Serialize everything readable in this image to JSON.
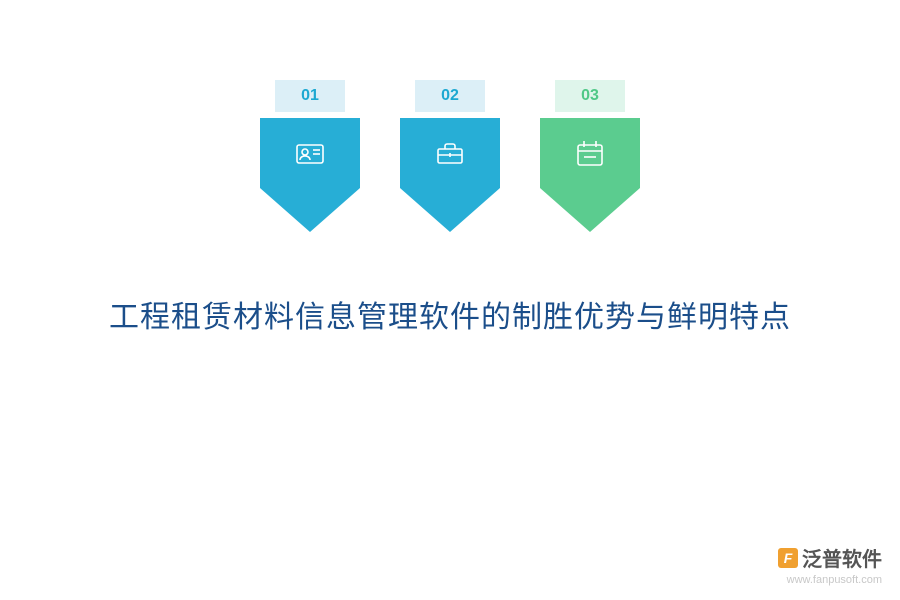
{
  "infographic": {
    "type": "infographic",
    "background_color": "#ffffff",
    "arrows": [
      {
        "number": "01",
        "tab_bg": "#dceff7",
        "tab_text_color": "#1ca8d1",
        "body_color": "#27aed6",
        "tip_color": "#27aed6",
        "icon": "id-card"
      },
      {
        "number": "02",
        "tab_bg": "#dceff7",
        "tab_text_color": "#1ca8d1",
        "body_color": "#27aed6",
        "tip_color": "#27aed6",
        "icon": "toolbox"
      },
      {
        "number": "03",
        "tab_bg": "#dff5eb",
        "tab_text_color": "#4fc887",
        "body_color": "#5bcc8f",
        "tip_color": "#5bcc8f",
        "icon": "calendar"
      }
    ],
    "arrow_width": 100,
    "arrow_body_height": 70,
    "arrow_tip_height": 44,
    "arrow_gap": 40,
    "tab_width": 70,
    "tab_height": 32,
    "icon_stroke_color": "#ffffff",
    "icon_stroke_width": 1.6,
    "title": {
      "text": "工程租赁材料信息管理软件的制胜优势与鲜明特点",
      "color": "#1b4e8a",
      "fontsize": 30,
      "margin_top": 60
    }
  },
  "watermark": {
    "brand_text": "泛普软件",
    "brand_color": "#555555",
    "logo_bg": "#f0a030",
    "logo_text": "F",
    "logo_text_color": "#ffffff",
    "url_text": "www.fanpusoft.com",
    "url_color": "#c8c8c8"
  }
}
